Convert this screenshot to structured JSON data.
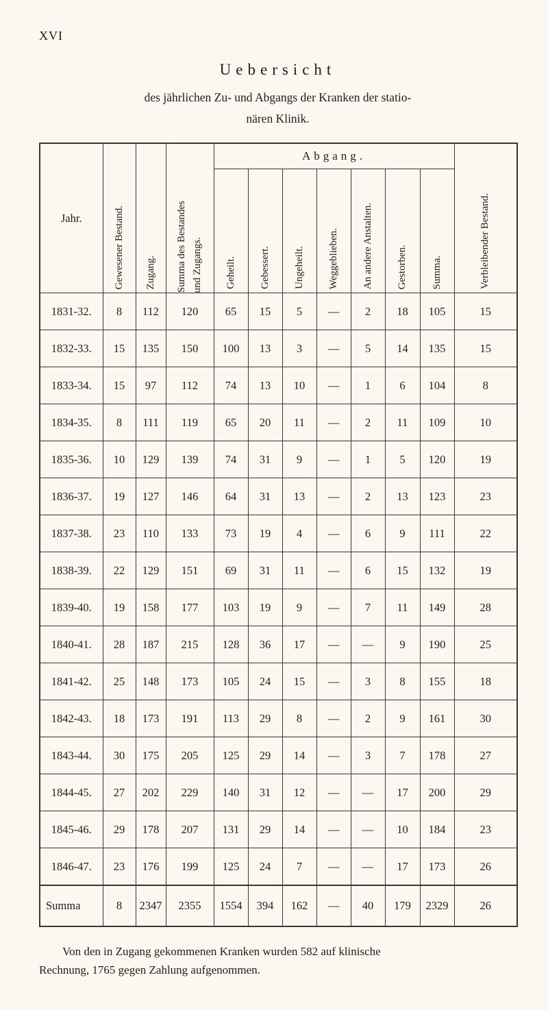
{
  "page": {
    "number": "XVI",
    "title": "Uebersicht",
    "subtitle": [
      "des jährlichen Zu- und Abgangs der Kranken der statio-",
      "nären Klinik."
    ],
    "footnote": [
      "Von den in Zugang gekommenen Kranken wurden 582 auf klinische",
      "Rechnung, 1765 gegen Zahlung aufgenommen."
    ]
  },
  "table": {
    "col_headers": {
      "jahr": "Jahr.",
      "gewesener_bestand": "Gewesener Bestand.",
      "zugang": "Zugang.",
      "summa_bestand_zugang": [
        "Summa des Bestandes",
        "und Zugangs."
      ],
      "abgang_group": "Abgang.",
      "abgang_cols": [
        "Geheilt.",
        "Gebessert.",
        "Ungeheilt.",
        "Weggeblieben.",
        "An andere Anstalten.",
        "Gestorben.",
        "Summa."
      ],
      "verbleibender_bestand": "Verbleibender Bestand."
    },
    "rows": [
      {
        "jahr": "1831-32.",
        "values": [
          "8",
          "112",
          "120",
          "65",
          "15",
          "5",
          "—",
          "2",
          "18",
          "105",
          "15"
        ]
      },
      {
        "jahr": "1832-33.",
        "values": [
          "15",
          "135",
          "150",
          "100",
          "13",
          "3",
          "—",
          "5",
          "14",
          "135",
          "15"
        ]
      },
      {
        "jahr": "1833-34.",
        "values": [
          "15",
          "97",
          "112",
          "74",
          "13",
          "10",
          "—",
          "1",
          "6",
          "104",
          "8"
        ]
      },
      {
        "jahr": "1834-35.",
        "values": [
          "8",
          "111",
          "119",
          "65",
          "20",
          "11",
          "—",
          "2",
          "11",
          "109",
          "10"
        ]
      },
      {
        "jahr": "1835-36.",
        "values": [
          "10",
          "129",
          "139",
          "74",
          "31",
          "9",
          "—",
          "1",
          "5",
          "120",
          "19"
        ]
      },
      {
        "jahr": "1836-37.",
        "values": [
          "19",
          "127",
          "146",
          "64",
          "31",
          "13",
          "—",
          "2",
          "13",
          "123",
          "23"
        ]
      },
      {
        "jahr": "1837-38.",
        "values": [
          "23",
          "110",
          "133",
          "73",
          "19",
          "4",
          "—",
          "6",
          "9",
          "111",
          "22"
        ]
      },
      {
        "jahr": "1838-39.",
        "values": [
          "22",
          "129",
          "151",
          "69",
          "31",
          "11",
          "—",
          "6",
          "15",
          "132",
          "19"
        ]
      },
      {
        "jahr": "1839-40.",
        "values": [
          "19",
          "158",
          "177",
          "103",
          "19",
          "9",
          "—",
          "7",
          "11",
          "149",
          "28"
        ]
      },
      {
        "jahr": "1840-41.",
        "values": [
          "28",
          "187",
          "215",
          "128",
          "36",
          "17",
          "—",
          "—",
          "9",
          "190",
          "25"
        ]
      },
      {
        "jahr": "1841-42.",
        "values": [
          "25",
          "148",
          "173",
          "105",
          "24",
          "15",
          "—",
          "3",
          "8",
          "155",
          "18"
        ]
      },
      {
        "jahr": "1842-43.",
        "values": [
          "18",
          "173",
          "191",
          "113",
          "29",
          "8",
          "—",
          "2",
          "9",
          "161",
          "30"
        ]
      },
      {
        "jahr": "1843-44.",
        "values": [
          "30",
          "175",
          "205",
          "125",
          "29",
          "14",
          "—",
          "3",
          "7",
          "178",
          "27"
        ]
      },
      {
        "jahr": "1844-45.",
        "values": [
          "27",
          "202",
          "229",
          "140",
          "31",
          "12",
          "—",
          "—",
          "17",
          "200",
          "29"
        ]
      },
      {
        "jahr": "1845-46.",
        "values": [
          "29",
          "178",
          "207",
          "131",
          "29",
          "14",
          "—",
          "—",
          "10",
          "184",
          "23"
        ]
      },
      {
        "jahr": "1846-47.",
        "values": [
          "23",
          "176",
          "199",
          "125",
          "24",
          "7",
          "—",
          "—",
          "17",
          "173",
          "26"
        ]
      }
    ],
    "summa_row": {
      "label": "Summa",
      "values": [
        "8",
        "2347",
        "2355",
        "1554",
        "394",
        "162",
        "—",
        "40",
        "179",
        "2329",
        "26"
      ]
    }
  }
}
